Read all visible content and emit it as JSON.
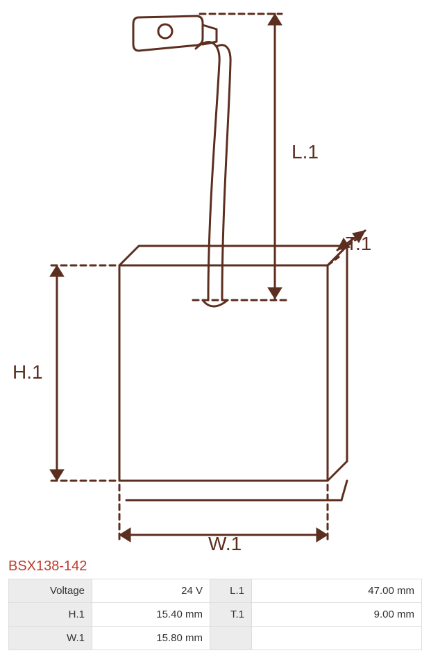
{
  "diagram": {
    "type": "technical-dimension-drawing",
    "stroke_color": "#5c2e1f",
    "stroke_width": 3,
    "dash_pattern": "8 6",
    "background_color": "#ffffff",
    "text_color": "#5c2e1f",
    "label_fontsize": 28,
    "labels": {
      "L1": "L.1",
      "T1": "T.1",
      "H1": "H.1",
      "W1": "W.1"
    }
  },
  "title": {
    "text": "BSX138-142",
    "color": "#c0392b"
  },
  "table": {
    "label_bg": "#ececec",
    "value_bg": "#ffffff",
    "border_color": "#dddddd",
    "rows": [
      {
        "label_a": "Voltage",
        "value_a": "24 V",
        "label_b": "L.1",
        "value_b": "47.00 mm"
      },
      {
        "label_a": "H.1",
        "value_a": "15.40 mm",
        "label_b": "T.1",
        "value_b": "9.00 mm"
      },
      {
        "label_a": "W.1",
        "value_a": "15.80 mm",
        "label_b": "",
        "value_b": ""
      }
    ],
    "col_widths": {
      "label": "120px",
      "value": "170px",
      "label2": "60px",
      "value2": "auto"
    }
  }
}
